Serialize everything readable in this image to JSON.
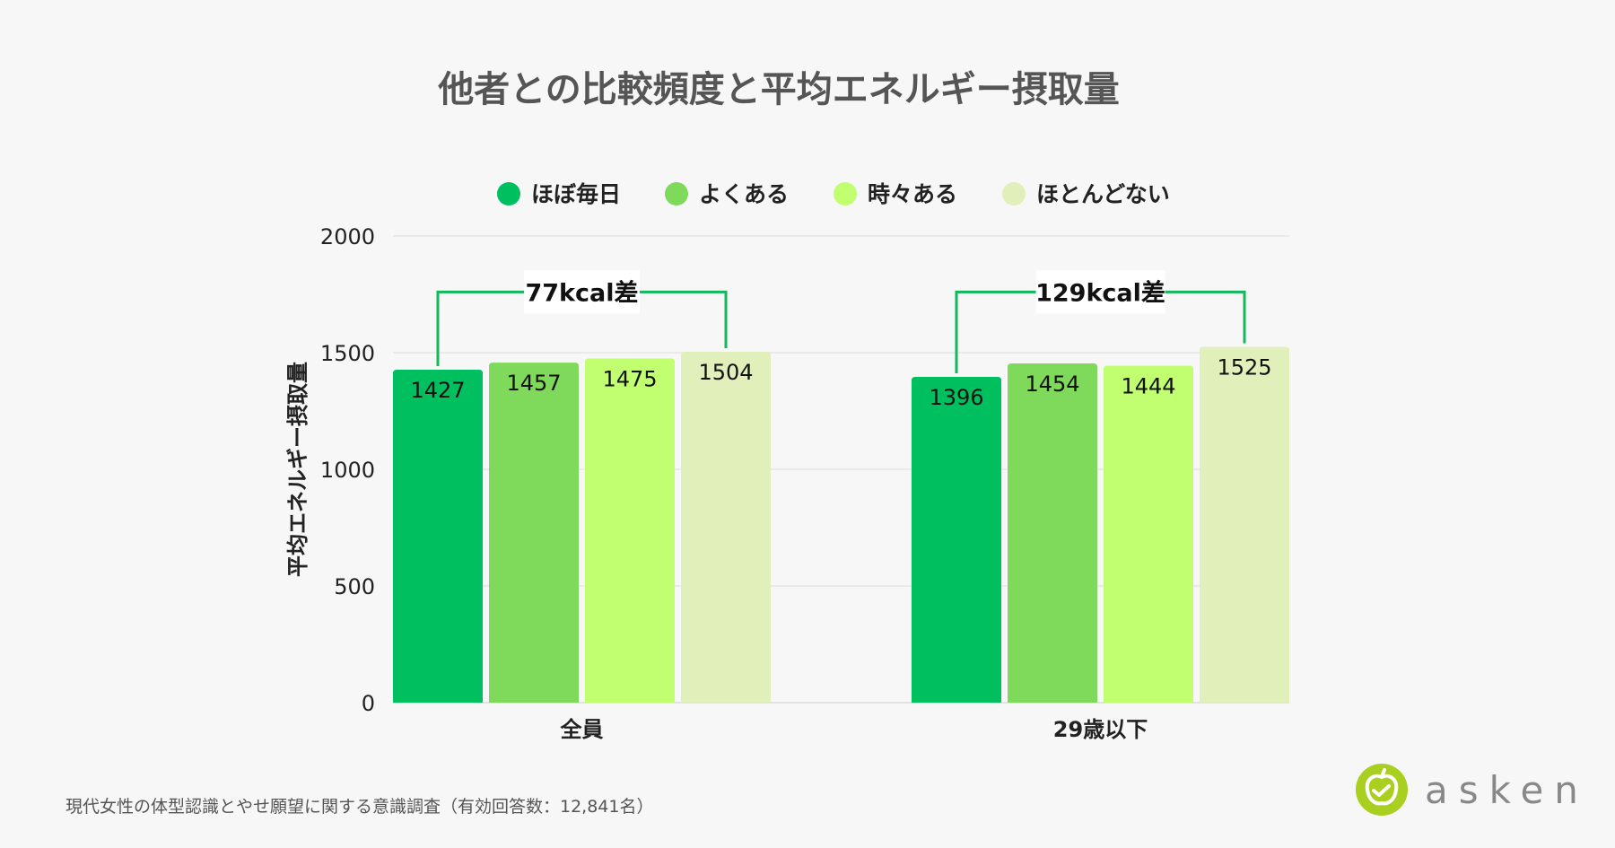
{
  "chart_data": {
    "type": "bar",
    "title": "他者との比較頻度と平均エネルギー摂取量",
    "ylabel": "平均エネルギー摂取量",
    "xlabel": "",
    "ylim": [
      0,
      2000
    ],
    "yticks": [
      0,
      500,
      1000,
      1500,
      2000
    ],
    "categories": [
      "全員",
      "29歳以下"
    ],
    "series": [
      {
        "name": "ほぼ毎日",
        "color": "#00bf5f",
        "values": [
          1427,
          1396
        ]
      },
      {
        "name": "よくある",
        "color": "#7fd95a",
        "values": [
          1457,
          1454
        ]
      },
      {
        "name": "時々ある",
        "color": "#c1ff71",
        "values": [
          1475,
          1444
        ]
      },
      {
        "name": "ほとんどない",
        "color": "#e1efbb",
        "values": [
          1504,
          1525
        ]
      }
    ],
    "annotations": [
      {
        "text": "77kcal差",
        "category": "全員",
        "from_series": 0,
        "to_series": 3
      },
      {
        "text": "129kcal差",
        "category": "29歳以下",
        "from_series": 0,
        "to_series": 3
      }
    ],
    "grid": true,
    "legend_position": "top-center",
    "annotation_color": "#13b85c"
  },
  "source": "現代女性の体型認識とやせ願望に関する意識調査（有効回答数：12,841名）",
  "logo": {
    "text": "asken",
    "icon": "apple-icon",
    "color": "#a9cf21"
  }
}
